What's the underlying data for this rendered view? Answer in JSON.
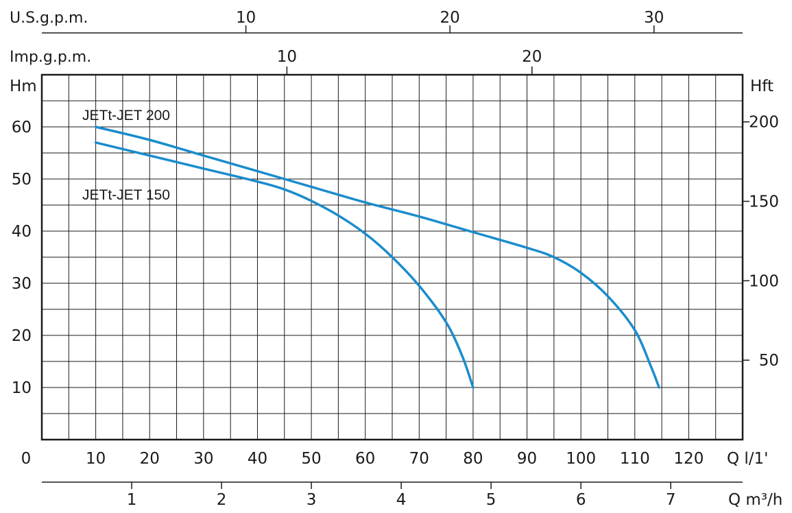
{
  "chart_data": {
    "type": "line",
    "x_axis": {
      "label": "Q  l/1'",
      "range": [
        0,
        130
      ],
      "ticks": [
        "0",
        "10",
        "20",
        "30",
        "40",
        "50",
        "60",
        "70",
        "80",
        "90",
        "100",
        "110",
        "120"
      ]
    },
    "y_axis_left": {
      "label": "Hm",
      "range": [
        0,
        70
      ],
      "ticks": [
        "10",
        "20",
        "30",
        "40",
        "50",
        "60"
      ]
    },
    "y_axis_right": {
      "label": "Hft",
      "ticks": [
        "50",
        "100",
        "150",
        "200"
      ],
      "tick_values": [
        50,
        100,
        150,
        200
      ]
    },
    "secondary_x_axes": [
      {
        "label": "U.S.g.p.m.",
        "ticks": [
          "10",
          "20",
          "30"
        ],
        "tick_values": [
          10,
          20,
          30
        ]
      },
      {
        "label": "Imp.g.p.m.",
        "ticks": [
          "10",
          "20"
        ],
        "tick_values": [
          10,
          20
        ]
      },
      {
        "label": "Q  m³/h",
        "ticks": [
          "1",
          "2",
          "3",
          "4",
          "5",
          "6",
          "7"
        ],
        "tick_values": [
          1,
          2,
          3,
          4,
          5,
          6,
          7
        ]
      }
    ],
    "series": [
      {
        "name": "JETt-JET 200",
        "color": "#1a8ccc",
        "x": [
          10,
          20,
          30,
          40,
          50,
          60,
          70,
          80,
          90,
          95,
          100,
          105,
          110,
          113,
          114.5
        ],
        "y": [
          60,
          57.5,
          54.5,
          51.5,
          48.5,
          45.5,
          42.8,
          39.8,
          36.8,
          35,
          32,
          27.5,
          21,
          14,
          10
        ]
      },
      {
        "name": "JETt-JET 150",
        "color": "#1a8ccc",
        "x": [
          10,
          20,
          30,
          40,
          45,
          50,
          55,
          60,
          65,
          70,
          75,
          78,
          80
        ],
        "y": [
          57,
          54.5,
          52,
          49.5,
          48,
          45.8,
          43,
          39.5,
          35,
          29.5,
          22.5,
          16,
          10
        ]
      }
    ],
    "grid": true,
    "legend": "none"
  }
}
